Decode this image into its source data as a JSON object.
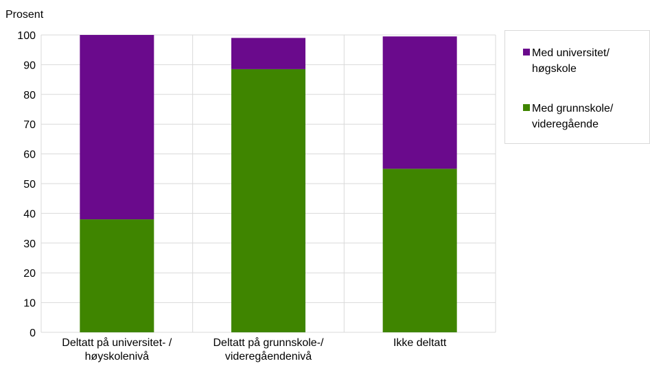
{
  "chart_data": {
    "type": "bar",
    "stacked": true,
    "ylabel": "Prosent",
    "ylim": [
      0,
      100
    ],
    "yticks": [
      0,
      10,
      20,
      30,
      40,
      50,
      60,
      70,
      80,
      90,
      100
    ],
    "grid": true,
    "legend_position": "right",
    "categories": [
      [
        "Deltatt på universitet- /",
        "høyskolenivå"
      ],
      [
        "Deltatt på grunnskole-/",
        "videregåendenivå"
      ],
      [
        "Ikke deltatt"
      ]
    ],
    "series": [
      {
        "name": [
          "Med grunnskole/",
          "videregående"
        ],
        "color": "#3f8500",
        "values": [
          38,
          88.5,
          55
        ]
      },
      {
        "name": [
          "Med universitet/",
          "høgskole"
        ],
        "color": "#6a0a8c",
        "values": [
          62,
          10.5,
          44.5
        ]
      }
    ]
  }
}
